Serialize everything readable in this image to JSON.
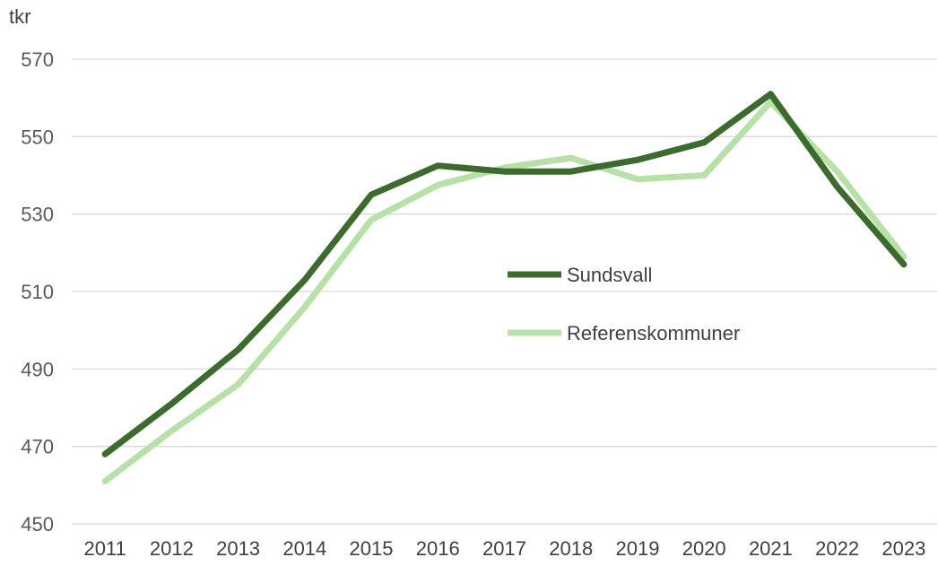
{
  "chart_data": {
    "type": "line",
    "title": "",
    "xlabel": "",
    "ylabel": "tkr",
    "categories": [
      "2011",
      "2012",
      "2013",
      "2014",
      "2015",
      "2016",
      "2017",
      "2018",
      "2019",
      "2020",
      "2021",
      "2022",
      "2023"
    ],
    "ylim": [
      450,
      570
    ],
    "yticks": [
      450,
      470,
      490,
      510,
      530,
      550,
      570
    ],
    "grid": true,
    "legend_position": "center-right",
    "series": [
      {
        "name": "Sundsvall",
        "color": "#3d6b2d",
        "values": [
          468,
          481,
          495,
          513,
          535,
          542.5,
          541,
          541,
          544,
          548.5,
          561,
          537,
          517
        ]
      },
      {
        "name": "Referenskommuner",
        "color": "#b7e1a8",
        "values": [
          461,
          474,
          486,
          506,
          528.5,
          537.5,
          542,
          544.5,
          539,
          540,
          559,
          541,
          519
        ]
      }
    ]
  }
}
